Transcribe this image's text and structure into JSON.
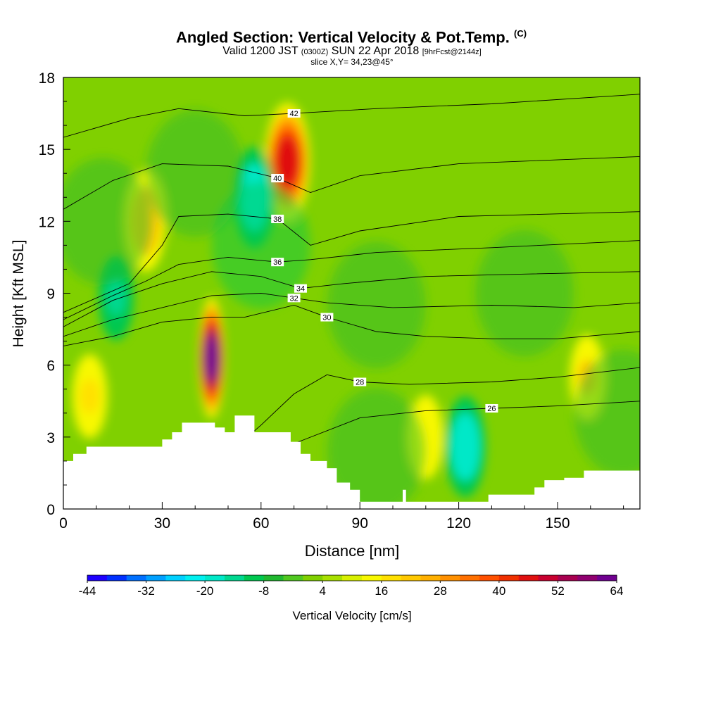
{
  "title": {
    "main": "Angled Section: Vertical Velocity & Pot.Temp.",
    "copyright": "(C)",
    "valid_prefix": "Valid 1200 JST",
    "valid_utc": "(0300Z)",
    "valid_date": "SUN 22 Apr 2018",
    "forecast": "[9hrFcst@2144z]",
    "slice": "slice X,Y= 34,23@45°"
  },
  "chart_data": {
    "type": "heatmap",
    "xlabel": "Distance [nm]",
    "ylabel": "Height [Kft MSL]",
    "xlim": [
      0,
      175
    ],
    "ylim": [
      0,
      18
    ],
    "x_ticks": [
      0,
      30,
      60,
      90,
      120,
      150
    ],
    "y_ticks": [
      0,
      3,
      6,
      9,
      12,
      15,
      18
    ],
    "colorbar": {
      "label": "Vertical Velocity [cm/s]",
      "min": -44,
      "max": 64,
      "step": 4,
      "tick_labels": [
        "-44",
        "-32",
        "-20",
        "-8",
        "4",
        "16",
        "28",
        "40",
        "52",
        "64"
      ],
      "colors": [
        "#1e00ff",
        "#0030ff",
        "#0070ff",
        "#00a0ff",
        "#00d0ff",
        "#00f0f0",
        "#00e8c8",
        "#00d890",
        "#00c850",
        "#20b830",
        "#50c820",
        "#80d000",
        "#a8e000",
        "#d8f000",
        "#f8f800",
        "#ffe000",
        "#ffc800",
        "#ffb000",
        "#ff9000",
        "#ff7000",
        "#ff5000",
        "#f03000",
        "#e01010",
        "#c80030",
        "#a80050",
        "#900070",
        "#700090"
      ]
    },
    "theta_contours": [
      {
        "label": "26",
        "points": [
          [
            69.5,
            2.7
          ],
          [
            90,
            3.8
          ],
          [
            110,
            4.1
          ],
          [
            130,
            4.2
          ],
          [
            150,
            4.3
          ],
          [
            175,
            4.5
          ]
        ]
      },
      {
        "label": "28",
        "points": [
          [
            55,
            2.9
          ],
          [
            60,
            3.5
          ],
          [
            70,
            4.8
          ],
          [
            80,
            5.6
          ],
          [
            90,
            5.3
          ],
          [
            105,
            5.2
          ],
          [
            130,
            5.3
          ],
          [
            150,
            5.5
          ],
          [
            175,
            5.9
          ]
        ]
      },
      {
        "label": "30",
        "points": [
          [
            0,
            6.8
          ],
          [
            15,
            7.2
          ],
          [
            30,
            7.8
          ],
          [
            45,
            8.0
          ],
          [
            55,
            8.0
          ],
          [
            70,
            8.5
          ],
          [
            80,
            8.0
          ],
          [
            95,
            7.4
          ],
          [
            110,
            7.2
          ],
          [
            130,
            7.1
          ],
          [
            150,
            7.1
          ],
          [
            175,
            7.4
          ]
        ]
      },
      {
        "label": "32",
        "points": [
          [
            0,
            7.2
          ],
          [
            15,
            7.9
          ],
          [
            30,
            8.4
          ],
          [
            45,
            8.9
          ],
          [
            60,
            9.0
          ],
          [
            70,
            8.8
          ],
          [
            80,
            8.6
          ],
          [
            100,
            8.4
          ],
          [
            130,
            8.5
          ],
          [
            155,
            8.4
          ],
          [
            175,
            8.6
          ]
        ]
      },
      {
        "label": "34",
        "points": [
          [
            0,
            7.6
          ],
          [
            15,
            8.7
          ],
          [
            30,
            9.4
          ],
          [
            45,
            9.9
          ],
          [
            60,
            9.7
          ],
          [
            72,
            9.2
          ],
          [
            85,
            9.4
          ],
          [
            110,
            9.7
          ],
          [
            140,
            9.8
          ],
          [
            175,
            9.9
          ]
        ]
      },
      {
        "label": "36",
        "points": [
          [
            0,
            7.9
          ],
          [
            15,
            8.9
          ],
          [
            25,
            9.5
          ],
          [
            35,
            10.2
          ],
          [
            50,
            10.5
          ],
          [
            65,
            10.3
          ],
          [
            75,
            10.4
          ],
          [
            95,
            10.7
          ],
          [
            130,
            10.9
          ],
          [
            175,
            11.2
          ]
        ]
      },
      {
        "label": "38",
        "points": [
          [
            0,
            8.2
          ],
          [
            20,
            9.4
          ],
          [
            30,
            11.0
          ],
          [
            35,
            12.2
          ],
          [
            50,
            12.3
          ],
          [
            65,
            12.1
          ],
          [
            75,
            11.0
          ],
          [
            90,
            11.6
          ],
          [
            120,
            12.2
          ],
          [
            175,
            12.4
          ]
        ]
      },
      {
        "label": "40",
        "points": [
          [
            0,
            12.5
          ],
          [
            15,
            13.7
          ],
          [
            30,
            14.4
          ],
          [
            50,
            14.3
          ],
          [
            65,
            13.8
          ],
          [
            75,
            13.2
          ],
          [
            90,
            13.9
          ],
          [
            120,
            14.4
          ],
          [
            175,
            14.7
          ]
        ]
      },
      {
        "label": "42",
        "points": [
          [
            0,
            15.5
          ],
          [
            20,
            16.3
          ],
          [
            35,
            16.7
          ],
          [
            55,
            16.4
          ],
          [
            70,
            16.5
          ],
          [
            95,
            16.7
          ],
          [
            130,
            16.9
          ],
          [
            175,
            17.3
          ]
        ]
      }
    ],
    "terrain_profile": [
      [
        0,
        2.0
      ],
      [
        3,
        2.0
      ],
      [
        3,
        2.3
      ],
      [
        7,
        2.3
      ],
      [
        7,
        2.6
      ],
      [
        30,
        2.6
      ],
      [
        30,
        2.9
      ],
      [
        33,
        2.9
      ],
      [
        33,
        3.2
      ],
      [
        36,
        3.2
      ],
      [
        36,
        3.6
      ],
      [
        46,
        3.6
      ],
      [
        46,
        3.4
      ],
      [
        49,
        3.4
      ],
      [
        49,
        3.2
      ],
      [
        52,
        3.2
      ],
      [
        52,
        3.9
      ],
      [
        58,
        3.9
      ],
      [
        58,
        3.2
      ],
      [
        69,
        3.2
      ],
      [
        69,
        2.8
      ],
      [
        72,
        2.8
      ],
      [
        72,
        2.3
      ],
      [
        75,
        2.3
      ],
      [
        75,
        2.0
      ],
      [
        80,
        2.0
      ],
      [
        80,
        1.7
      ],
      [
        83,
        1.7
      ],
      [
        83,
        1.1
      ],
      [
        87,
        1.1
      ],
      [
        87,
        0.8
      ],
      [
        90,
        0.8
      ],
      [
        90,
        0.3
      ],
      [
        103,
        0.3
      ],
      [
        103,
        0.8
      ],
      [
        104,
        0.8
      ],
      [
        104,
        0.3
      ],
      [
        129,
        0.3
      ],
      [
        129,
        0.6
      ],
      [
        143,
        0.6
      ],
      [
        143,
        0.9
      ],
      [
        146,
        0.9
      ],
      [
        146,
        1.2
      ],
      [
        152,
        1.2
      ],
      [
        152,
        1.3
      ],
      [
        158,
        1.3
      ],
      [
        158,
        1.6
      ],
      [
        165,
        1.6
      ],
      [
        165,
        1.6
      ],
      [
        175,
        1.6
      ]
    ],
    "velocity_features": [
      {
        "x": 45,
        "y": 6.3,
        "peak": 64
      },
      {
        "x": 68,
        "y": 14.5,
        "peak": 44
      },
      {
        "x": 25,
        "y": 12.0,
        "peak": 20
      },
      {
        "x": 58,
        "y": 13.0,
        "peak": -22
      },
      {
        "x": 16,
        "y": 8.8,
        "peak": -18
      },
      {
        "x": 8,
        "y": 4.7,
        "peak": 16
      },
      {
        "x": 159,
        "y": 5.5,
        "peak": 18
      },
      {
        "x": 122,
        "y": 2.6,
        "peak": -22
      },
      {
        "x": 110,
        "y": 3.0,
        "peak": 12
      }
    ]
  }
}
